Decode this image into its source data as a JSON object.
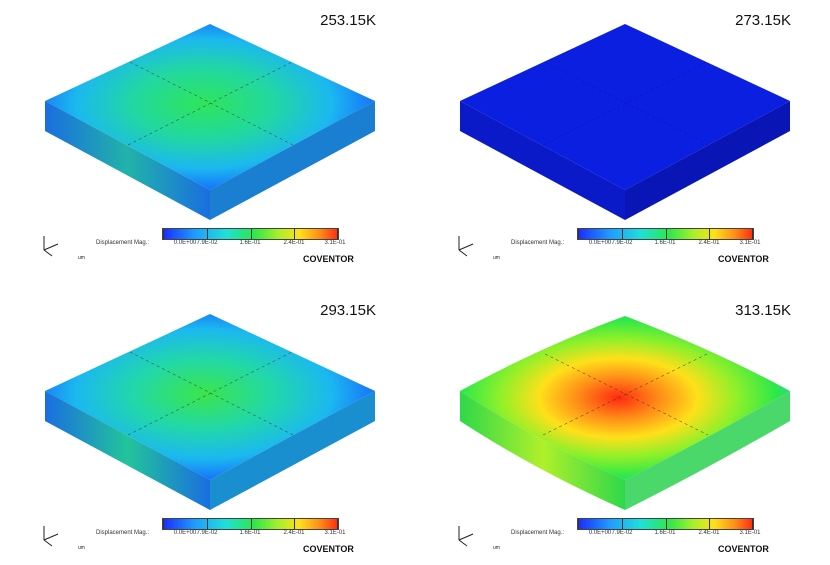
{
  "panels": [
    {
      "temperature": "253.15K",
      "mode": "sag"
    },
    {
      "temperature": "273.15K",
      "mode": "flat"
    },
    {
      "temperature": "293.15K",
      "mode": "sag"
    },
    {
      "temperature": "313.15K",
      "mode": "hot"
    }
  ],
  "legend": {
    "title": "Displacement Mag.:",
    "ticks": [
      "0.0E+00",
      "7.9E-02",
      "1.6E-01",
      "2.4E-01",
      "3.1E-01"
    ],
    "units": "um"
  },
  "brand": "COVENTOR",
  "colors": {
    "deep_blue": "#0b1fe0",
    "blue": "#1f8bff",
    "green": "#2de04a",
    "red": "#ff2a10"
  }
}
